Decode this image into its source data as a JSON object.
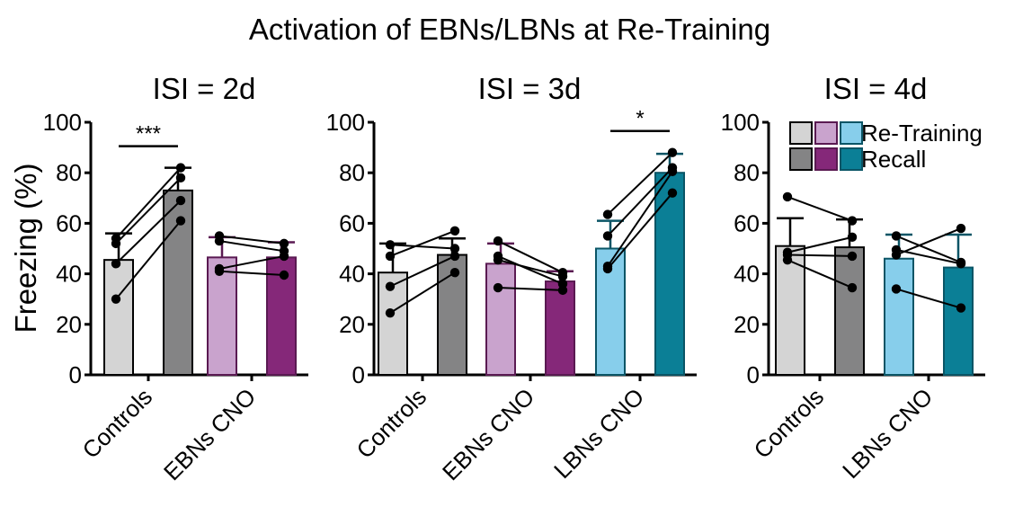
{
  "figure_title": "Activation of EBNs/LBNs at Re-Training",
  "ylabel": "Freezing (%)",
  "legend": {
    "row1_label": "Re-Training",
    "row2_label": "Recall",
    "retraining_colors": [
      "#d4d4d4",
      "#c9a3cd",
      "#87ceeb"
    ],
    "recall_colors": [
      "#848485",
      "#852879",
      "#0b7f96"
    ]
  },
  "colors": {
    "controls_retraining": "#d4d4d4",
    "controls_recall": "#848485",
    "ebns_retraining": "#c9a3cd",
    "ebns_recall": "#852879",
    "lbns_retraining": "#87ceeb",
    "lbns_recall": "#0b7f96",
    "controls_edge": "#000000",
    "ebns_edge": "#5a1a52",
    "lbns_edge": "#0a5566"
  },
  "chart_data": [
    {
      "type": "bar",
      "title": "ISI = 2d",
      "ylabel": "Freezing (%)",
      "ylim": [
        0,
        100
      ],
      "yticks": [
        0,
        20,
        40,
        60,
        80,
        100
      ],
      "categories": [
        "Controls",
        "EBNs CNO"
      ],
      "series": [
        {
          "name": "Re-Training"
        },
        {
          "name": "Recall"
        }
      ],
      "groups": [
        {
          "label": "Controls",
          "key": "controls",
          "retraining": {
            "mean": 45.5,
            "error": 56,
            "points": [
              54,
              52,
              44,
              30
            ]
          },
          "recall": {
            "mean": 73,
            "error": 82,
            "points": [
              82,
              78,
              69,
              61
            ]
          },
          "significance": "***"
        },
        {
          "label": "EBNs CNO",
          "key": "ebns",
          "retraining": {
            "mean": 46.5,
            "error": 54.5,
            "points": [
              55,
              53,
              42,
              41
            ]
          },
          "recall": {
            "mean": 46.5,
            "error": 52.5,
            "points": [
              52,
              49,
              47,
              39.5
            ]
          }
        }
      ]
    },
    {
      "type": "bar",
      "title": "ISI = 3d",
      "ylim": [
        0,
        100
      ],
      "yticks": [
        0,
        20,
        40,
        60,
        80,
        100
      ],
      "categories": [
        "Controls",
        "EBNs CNO",
        "LBNs CNO"
      ],
      "series": [
        {
          "name": "Re-Training"
        },
        {
          "name": "Recall"
        }
      ],
      "groups": [
        {
          "label": "Controls",
          "key": "controls",
          "retraining": {
            "mean": 40.5,
            "error": 52,
            "points": [
              51.5,
              47,
              35,
              24.5
            ]
          },
          "recall": {
            "mean": 47.5,
            "error": 54,
            "points": [
              50,
              57,
              47,
              40.5
            ]
          }
        },
        {
          "label": "EBNs CNO",
          "key": "ebns",
          "retraining": {
            "mean": 44,
            "error": 52,
            "points": [
              53,
              47,
              45.5,
              34.5
            ]
          },
          "recall": {
            "mean": 37,
            "error": 41,
            "points": [
              40.5,
              36,
              39,
              33.5
            ]
          }
        },
        {
          "label": "LBNs CNO",
          "key": "lbns",
          "retraining": {
            "mean": 50,
            "error": 61,
            "points": [
              63.5,
              55,
              43,
              42
            ]
          },
          "recall": {
            "mean": 80,
            "error": 87.5,
            "points": [
              88,
              82,
              80.5,
              72
            ]
          },
          "significance": "*"
        }
      ]
    },
    {
      "type": "bar",
      "title": "ISI = 4d",
      "ylim": [
        0,
        100
      ],
      "yticks": [
        0,
        20,
        40,
        60,
        80,
        100
      ],
      "categories": [
        "Controls",
        "LBNs CNO"
      ],
      "series": [
        {
          "name": "Re-Training"
        },
        {
          "name": "Recall"
        }
      ],
      "groups": [
        {
          "label": "Controls",
          "key": "controls",
          "retraining": {
            "mean": 51,
            "error": 62,
            "points": [
              70.5,
              48.5,
              47.5,
              45.5
            ]
          },
          "recall": {
            "mean": 50.5,
            "error": 61.5,
            "points": [
              61,
              54.5,
              47,
              34.5
            ]
          }
        },
        {
          "label": "LBNs CNO",
          "key": "lbns",
          "retraining": {
            "mean": 46,
            "error": 55.5,
            "points": [
              55,
              49.5,
              47.5,
              34
            ]
          },
          "recall": {
            "mean": 42.5,
            "error": 55.5,
            "points": [
              44.5,
              44,
              58,
              26.5
            ]
          }
        }
      ]
    }
  ]
}
